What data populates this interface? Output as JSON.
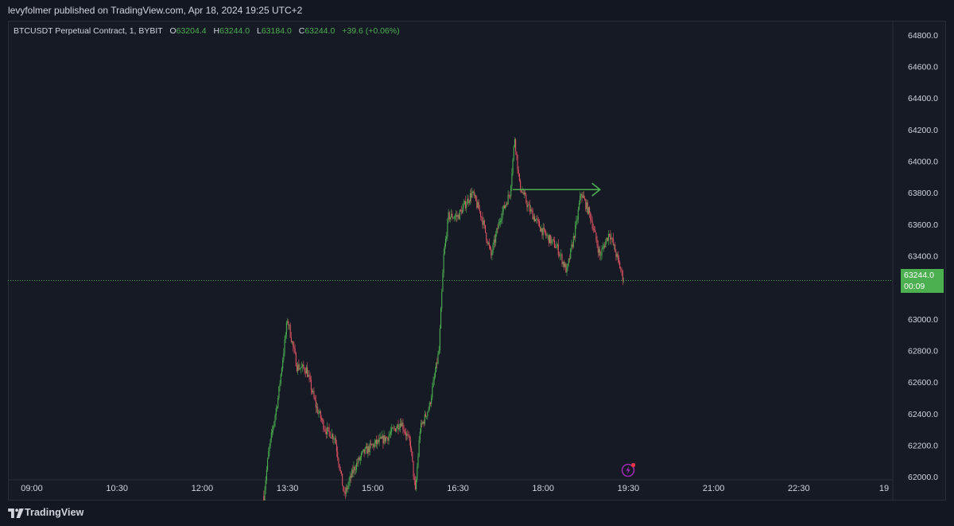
{
  "header": {
    "publisher": "levyfolmer published on TradingView.com, Apr 18, 2024 19:25 UTC+2"
  },
  "legend": {
    "symbol": "BTCUSDT Perpetual Contract, 1, BYBIT",
    "open_key": "O",
    "open": "63204.4",
    "high_key": "H",
    "high": "63244.0",
    "low_key": "L",
    "low": "63184.0",
    "close_key": "C",
    "close": "63244.0",
    "change": "+39.6 (+0.06%)"
  },
  "price_label": {
    "price": "63244.0",
    "countdown": "00:09"
  },
  "footer": {
    "brand": "TradingView"
  },
  "colors": {
    "up": "#4caf50",
    "down": "#e05263",
    "arrow": "#4caf50",
    "bg": "#161a25",
    "text": "#d1d4dc"
  },
  "chart_data": {
    "type": "candlestick",
    "x_tick_labels": [
      "09:00",
      "10:30",
      "12:00",
      "13:30",
      "15:00",
      "16:30",
      "18:00",
      "19:30",
      "21:00",
      "22:30",
      "19"
    ],
    "y_tick_labels": [
      "62000.0",
      "62200.0",
      "62400.0",
      "62600.0",
      "62800.0",
      "63000.0",
      "63200.0",
      "63400.0",
      "63600.0",
      "63800.0",
      "64000.0",
      "64200.0",
      "64400.0",
      "64600.0",
      "64800.0"
    ],
    "ylim": [
      61850,
      64890
    ],
    "current_price": 63244.0,
    "grid": false,
    "path": [
      [
        "13:05",
        61880
      ],
      [
        "13:10",
        62150
      ],
      [
        "13:20",
        62500
      ],
      [
        "13:30",
        63000
      ],
      [
        "13:40",
        62700
      ],
      [
        "13:50",
        62680
      ],
      [
        "14:00",
        62450
      ],
      [
        "14:10",
        62300
      ],
      [
        "14:20",
        62250
      ],
      [
        "14:30",
        61880
      ],
      [
        "14:40",
        62050
      ],
      [
        "14:50",
        62150
      ],
      [
        "15:00",
        62200
      ],
      [
        "15:15",
        62250
      ],
      [
        "15:30",
        62350
      ],
      [
        "15:40",
        62200
      ],
      [
        "15:45",
        61900
      ],
      [
        "15:50",
        62300
      ],
      [
        "16:00",
        62450
      ],
      [
        "16:10",
        62800
      ],
      [
        "16:15",
        63400
      ],
      [
        "16:20",
        63650
      ],
      [
        "16:30",
        63650
      ],
      [
        "16:45",
        63800
      ],
      [
        "16:55",
        63650
      ],
      [
        "17:05",
        63400
      ],
      [
        "17:15",
        63650
      ],
      [
        "17:25",
        63800
      ],
      [
        "17:30",
        64150
      ],
      [
        "17:35",
        63850
      ],
      [
        "17:45",
        63700
      ],
      [
        "18:00",
        63550
      ],
      [
        "18:15",
        63450
      ],
      [
        "18:25",
        63300
      ],
      [
        "18:35",
        63600
      ],
      [
        "18:40",
        63800
      ],
      [
        "18:50",
        63650
      ],
      [
        "19:00",
        63400
      ],
      [
        "19:10",
        63550
      ],
      [
        "19:20",
        63350
      ],
      [
        "19:25",
        63244
      ]
    ],
    "arrow": {
      "from": [
        "17:28",
        63820
      ],
      "to": [
        "19:00",
        63820
      ]
    },
    "seed": 7
  }
}
